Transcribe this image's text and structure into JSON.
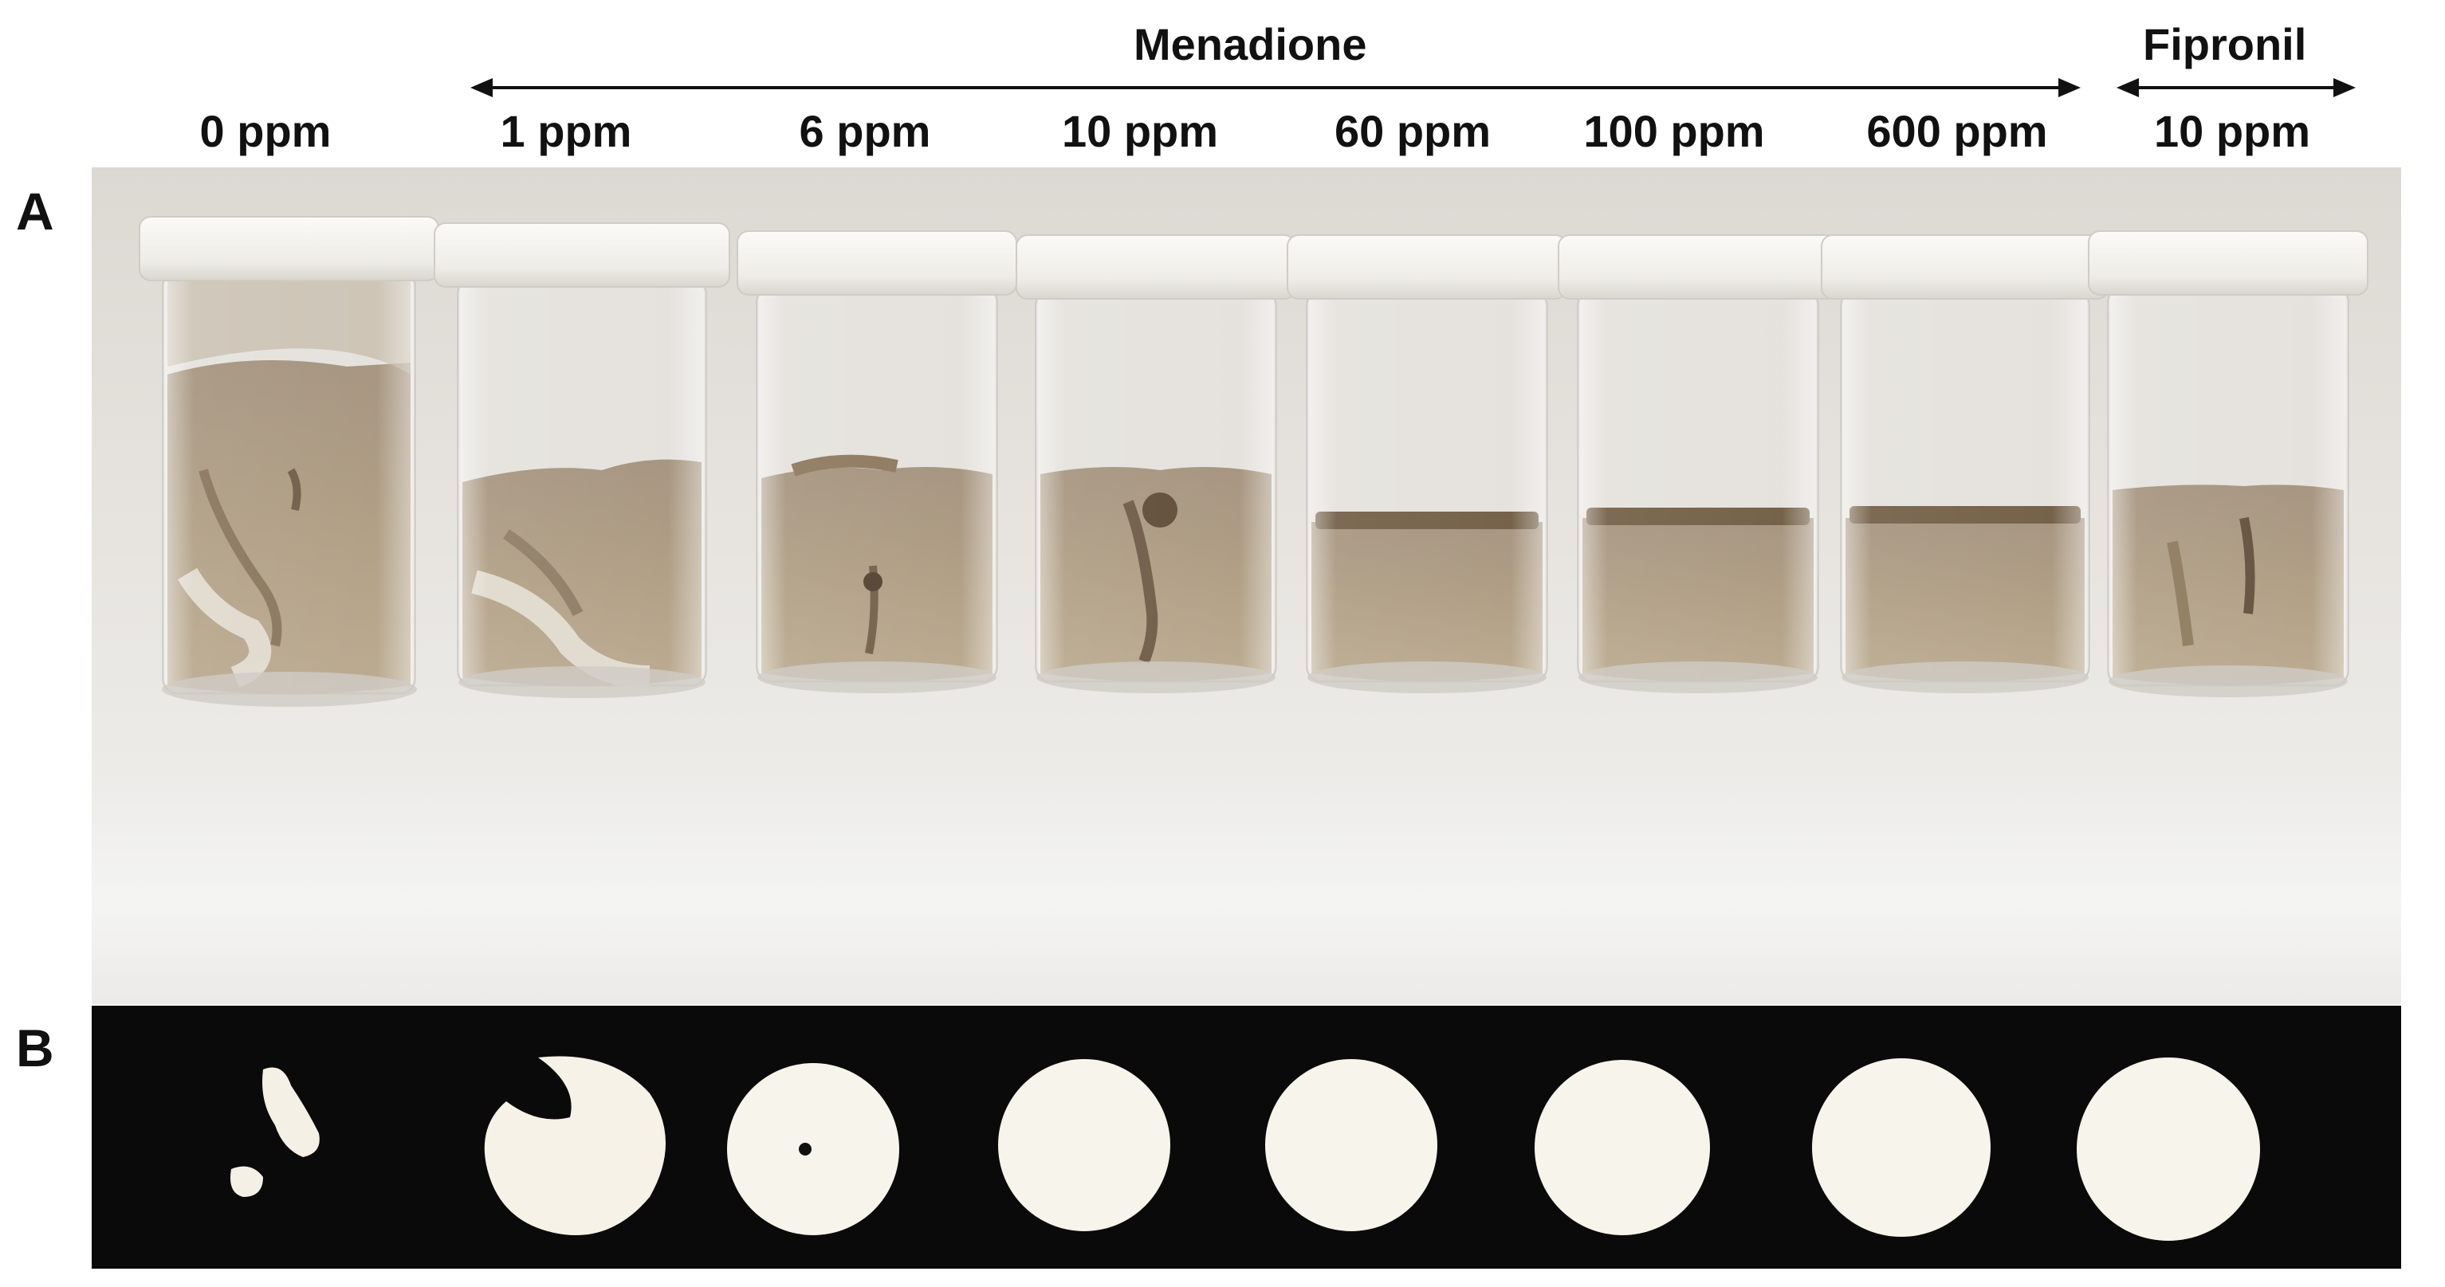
{
  "figure": {
    "group_labels": {
      "menadione": "Menadione",
      "fipronil": "Fipronil"
    },
    "panel_labels": {
      "a": "A",
      "b": "B"
    },
    "concentrations": [
      "0 ppm",
      "1 ppm",
      "6 ppm",
      "10 ppm",
      "60 ppm",
      "100 ppm",
      "600 ppm",
      "10 ppm"
    ],
    "colors": {
      "sand": "#a89478",
      "sand_dark": "#7d6a52",
      "cap": "#f3f1ec",
      "disc": "#f7f4ec",
      "panel_b_background": "#0a0a0a"
    }
  }
}
